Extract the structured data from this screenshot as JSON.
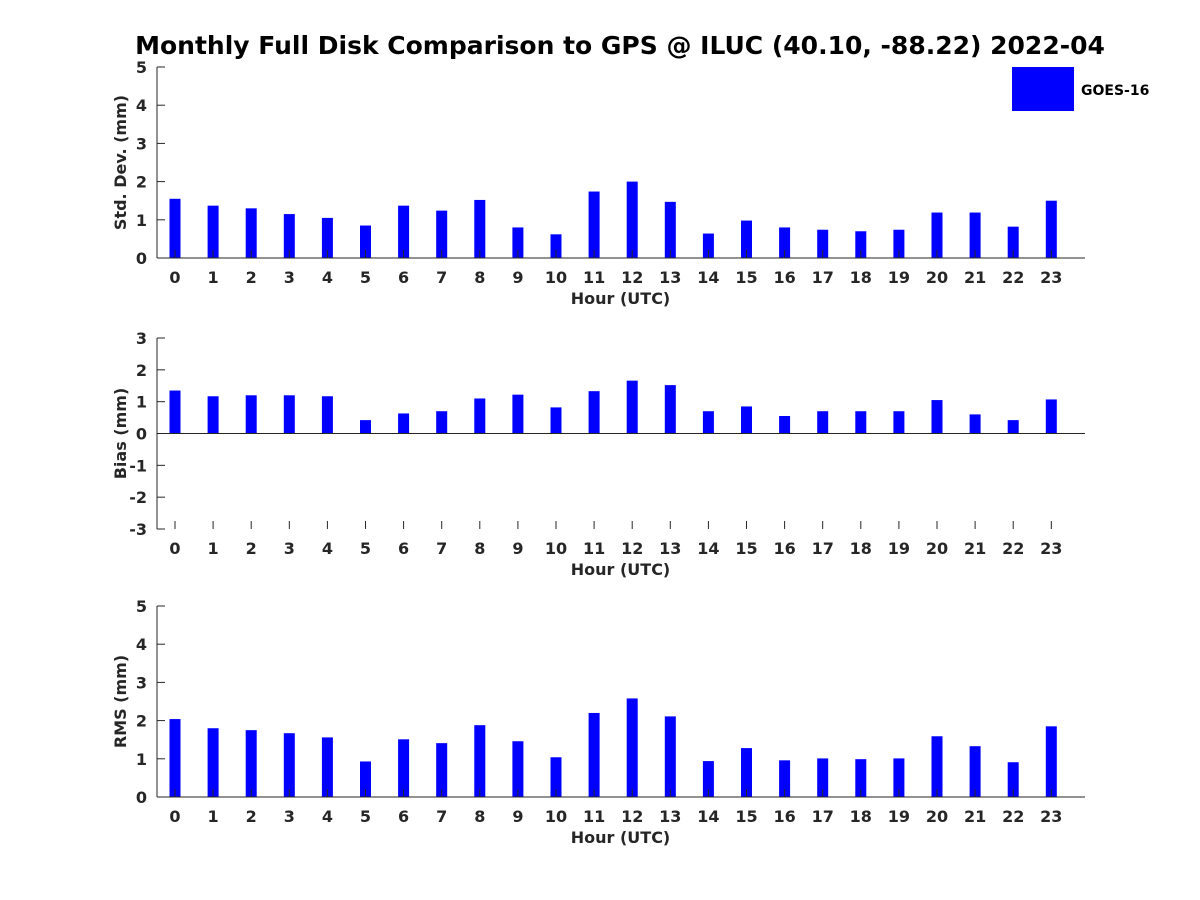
{
  "title": "Monthly Full Disk Comparison to GPS @ ILUC (40.10, -88.22) 2022-04",
  "legend": {
    "label": "GOES-16",
    "color": "#0000ff",
    "placement": "top-right"
  },
  "chart_data": [
    {
      "type": "bar",
      "categories": [
        "0",
        "1",
        "2",
        "3",
        "4",
        "5",
        "6",
        "7",
        "8",
        "9",
        "10",
        "11",
        "12",
        "13",
        "14",
        "15",
        "16",
        "17",
        "18",
        "19",
        "20",
        "21",
        "22",
        "23"
      ],
      "series": [
        {
          "name": "GOES-16",
          "values": [
            1.55,
            1.37,
            1.3,
            1.15,
            1.05,
            0.85,
            1.37,
            1.24,
            1.52,
            0.8,
            0.62,
            1.74,
            2.0,
            1.47,
            0.64,
            0.98,
            0.8,
            0.74,
            0.7,
            0.74,
            1.19,
            1.19,
            0.82,
            1.5
          ]
        }
      ],
      "xlabel": "Hour (UTC)",
      "ylabel": "Std. Dev. (mm)",
      "ylim": [
        0,
        5
      ],
      "yticks": [
        "0",
        "1",
        "2",
        "3",
        "4",
        "5"
      ],
      "grid": false
    },
    {
      "type": "bar",
      "categories": [
        "0",
        "1",
        "2",
        "3",
        "4",
        "5",
        "6",
        "7",
        "8",
        "9",
        "10",
        "11",
        "12",
        "13",
        "14",
        "15",
        "16",
        "17",
        "18",
        "19",
        "20",
        "21",
        "22",
        "23"
      ],
      "series": [
        {
          "name": "GOES-16",
          "values": [
            1.35,
            1.17,
            1.2,
            1.2,
            1.17,
            0.42,
            0.63,
            0.7,
            1.1,
            1.22,
            0.82,
            1.33,
            1.66,
            1.52,
            0.7,
            0.85,
            0.55,
            0.7,
            0.7,
            0.7,
            1.05,
            0.6,
            0.42,
            1.07
          ]
        }
      ],
      "xlabel": "Hour (UTC)",
      "ylabel": "Bias (mm)",
      "ylim": [
        -3,
        3
      ],
      "yticks": [
        "-3",
        "-2",
        "-1",
        "0",
        "1",
        "2",
        "3"
      ],
      "grid": false
    },
    {
      "type": "bar",
      "categories": [
        "0",
        "1",
        "2",
        "3",
        "4",
        "5",
        "6",
        "7",
        "8",
        "9",
        "10",
        "11",
        "12",
        "13",
        "14",
        "15",
        "16",
        "17",
        "18",
        "19",
        "20",
        "21",
        "22",
        "23"
      ],
      "series": [
        {
          "name": "GOES-16",
          "values": [
            2.04,
            1.8,
            1.75,
            1.67,
            1.56,
            0.93,
            1.51,
            1.41,
            1.88,
            1.46,
            1.04,
            2.2,
            2.58,
            2.11,
            0.94,
            1.28,
            0.96,
            1.01,
            0.99,
            1.01,
            1.59,
            1.33,
            0.91,
            1.85
          ]
        }
      ],
      "xlabel": "Hour (UTC)",
      "ylabel": "RMS (mm)",
      "ylim": [
        0,
        5
      ],
      "yticks": [
        "0",
        "1",
        "2",
        "3",
        "4",
        "5"
      ],
      "grid": false
    }
  ]
}
